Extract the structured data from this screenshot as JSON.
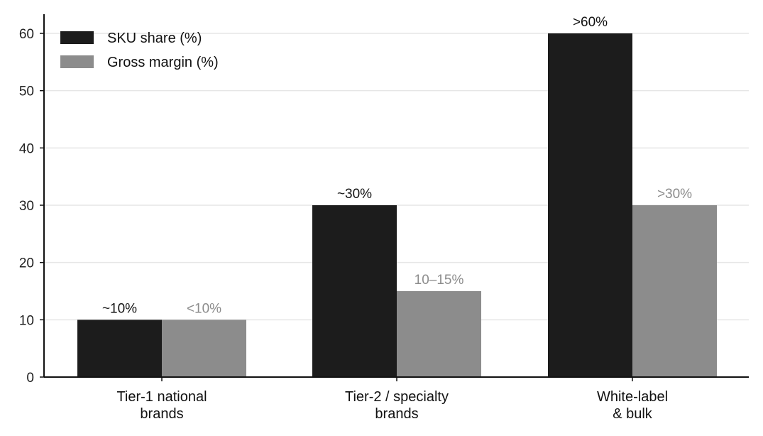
{
  "chart_data": {
    "type": "bar",
    "categories": [
      [
        "Tier-1 national",
        "brands"
      ],
      [
        "Tier-2 / specialty",
        "brands"
      ],
      [
        "White-label",
        "& bulk"
      ]
    ],
    "series": [
      {
        "name": "SKU share (%)",
        "color": "#1c1c1c",
        "label_color": "#111111",
        "values": [
          10,
          30,
          60
        ],
        "labels": [
          "~10%",
          "~30%",
          ">60%"
        ]
      },
      {
        "name": "Gross margin (%)",
        "color": "#8c8c8c",
        "label_color": "#8c8c8c",
        "values": [
          10,
          15,
          30
        ],
        "labels": [
          "<10%",
          "10–15%",
          ">30%"
        ]
      }
    ],
    "ylim": [
      0,
      60
    ],
    "yticks": [
      0,
      10,
      20,
      30,
      40,
      50,
      60
    ],
    "grid": true,
    "legend_position": "top-left",
    "title": "",
    "xlabel": "",
    "ylabel": ""
  }
}
